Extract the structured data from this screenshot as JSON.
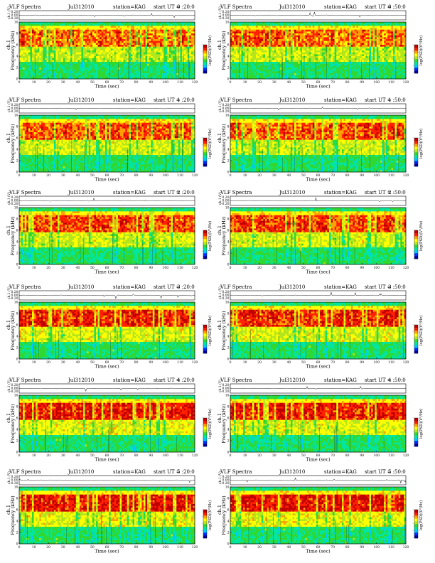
{
  "header_labels": {
    "title": "VLF Spectra",
    "station": "station=KAG",
    "start": "start  UT ="
  },
  "axis_labels": {
    "xlabel": "Time  (sec)",
    "ylabel": "Frequency  (kHz)",
    "channel_label": "ch.1",
    "waveform_ylabel": "ch.1 (V)",
    "colorbar_label": "log(PSD)(V²/Hz)"
  },
  "x_ticks": [
    "0",
    "10",
    "20",
    "30",
    "40",
    "50",
    "60",
    "70",
    "80",
    "90",
    "100",
    "110",
    "120"
  ],
  "y_ticks": [
    "0",
    "2",
    "4",
    "6",
    "8",
    "10"
  ],
  "waveform_ticks": [
    "0.20",
    "0.00",
    "-0.20"
  ],
  "colorbar": {
    "ticks": [
      "-",
      "-",
      "-",
      "-",
      "-"
    ],
    "colors": [
      "#0000a0",
      "#0030ff",
      "#00c8ff",
      "#00e6a0",
      "#30d830",
      "#b4e61e",
      "#ffff00",
      "#ffa000",
      "#ff2000",
      "#c00000"
    ]
  },
  "chart_data": [
    {
      "type": "heatmap",
      "panel": "row-1-left",
      "date": "Jul312010",
      "start_ut": "0 :20:0",
      "xlim": [
        0,
        120
      ],
      "ylim": [
        0,
        10
      ]
    },
    {
      "type": "heatmap",
      "panel": "row-1-right",
      "date": "Jul312010",
      "start_ut": "0 :50:0",
      "xlim": [
        0,
        120
      ],
      "ylim": [
        0,
        10
      ]
    },
    {
      "type": "heatmap",
      "panel": "row-2-left",
      "date": "Jul312010",
      "start_ut": "1 :20:0",
      "xlim": [
        0,
        120
      ],
      "ylim": [
        0,
        10
      ]
    },
    {
      "type": "heatmap",
      "panel": "row-2-right",
      "date": "Jul312010",
      "start_ut": "1 :50:0",
      "xlim": [
        0,
        120
      ],
      "ylim": [
        0,
        10
      ]
    },
    {
      "type": "heatmap",
      "panel": "row-3-left",
      "date": "Jul312010",
      "start_ut": "2 :20:0",
      "xlim": [
        0,
        120
      ],
      "ylim": [
        0,
        10
      ]
    },
    {
      "type": "heatmap",
      "panel": "row-3-right",
      "date": "Jul312010",
      "start_ut": "2 :50:0",
      "xlim": [
        0,
        120
      ],
      "ylim": [
        0,
        10
      ]
    },
    {
      "type": "heatmap",
      "panel": "row-4-left",
      "date": "Jul312010",
      "start_ut": "3 :20:0",
      "xlim": [
        0,
        120
      ],
      "ylim": [
        0,
        10
      ]
    },
    {
      "type": "heatmap",
      "panel": "row-4-right",
      "date": "Jul312010",
      "start_ut": "3 :50:0",
      "xlim": [
        0,
        120
      ],
      "ylim": [
        0,
        10
      ]
    },
    {
      "type": "heatmap",
      "panel": "row-5-left",
      "date": "Jul312010",
      "start_ut": "4 :20:0",
      "xlim": [
        0,
        120
      ],
      "ylim": [
        0,
        10
      ]
    },
    {
      "type": "heatmap",
      "panel": "row-5-right",
      "date": "Jul312010",
      "start_ut": "4 :50:0",
      "xlim": [
        0,
        120
      ],
      "ylim": [
        0,
        10
      ]
    },
    {
      "type": "heatmap",
      "panel": "row-6-left",
      "date": "Jul312010",
      "start_ut": "5 :20:0",
      "xlim": [
        0,
        120
      ],
      "ylim": [
        0,
        10
      ]
    },
    {
      "type": "heatmap",
      "panel": "row-6-right",
      "date": "Jul312010",
      "start_ut": "5 :50:0",
      "xlim": [
        0,
        120
      ],
      "ylim": [
        0,
        10
      ]
    }
  ]
}
